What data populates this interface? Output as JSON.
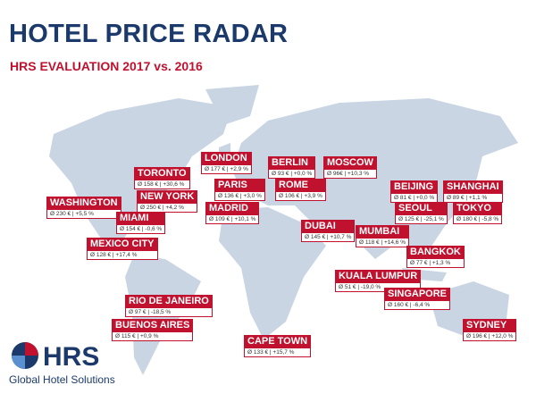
{
  "header": {
    "title": "HOTEL PRICE RADAR",
    "subtitle": "HRS EVALUATION 2017 vs. 2016"
  },
  "cities": [
    {
      "name": "TORONTO",
      "detail": "Ø 158 € | +30,6 %"
    },
    {
      "name": "WASHINGTON",
      "detail": "Ø 230 € | +5,5 %"
    },
    {
      "name": "NEW YORK",
      "detail": "Ø 250 € | +4,2 %"
    },
    {
      "name": "MIAMI",
      "detail": "Ø 154 € | -0,6 %"
    },
    {
      "name": "MEXICO CITY",
      "detail": "Ø 128 € | +17,4 %"
    },
    {
      "name": "RIO DE JANEIRO",
      "detail": "Ø 97 € | -18,5 %"
    },
    {
      "name": "BUENOS AIRES",
      "detail": "Ø 115 € | +0,9 %"
    },
    {
      "name": "LONDON",
      "detail": "Ø 177 € | +2,9 %"
    },
    {
      "name": "PARIS",
      "detail": "Ø 136 € | +3,0 %"
    },
    {
      "name": "MADRID",
      "detail": "Ø 109 € | +10,1 %"
    },
    {
      "name": "BERLIN",
      "detail": "Ø 93 € | +0,0 %"
    },
    {
      "name": "ROME",
      "detail": "Ø 106 € | +3,9 %"
    },
    {
      "name": "MOSCOW",
      "detail": "Ø 96€ | +10,3 %"
    },
    {
      "name": "DUBAI",
      "detail": "Ø 145 € | +10,7 %"
    },
    {
      "name": "CAPE TOWN",
      "detail": "Ø 133 € | +15,7 %"
    },
    {
      "name": "MUMBAI",
      "detail": "Ø 118 € | +14,6 %"
    },
    {
      "name": "BEIJING",
      "detail": "Ø 81 € | +0,0 %"
    },
    {
      "name": "SEOUL",
      "detail": "Ø 125 € | -25,1 %"
    },
    {
      "name": "SHANGHAI",
      "detail": "Ø 89 € | +1,1 %"
    },
    {
      "name": "TOKYO",
      "detail": "Ø 180 € | -5,8 %"
    },
    {
      "name": "BANGKOK",
      "detail": "Ø 77 € | +1,3 %"
    },
    {
      "name": "KUALA LUMPUR",
      "detail": "Ø 51 € | -19,0 %"
    },
    {
      "name": "SINGAPORE",
      "detail": "Ø 160 € | -6,4 %"
    },
    {
      "name": "SYDNEY",
      "detail": "Ø 196 € | +12,0 %"
    }
  ],
  "logo": {
    "brand": "HRS",
    "tagline": "Global Hotel Solutions"
  }
}
